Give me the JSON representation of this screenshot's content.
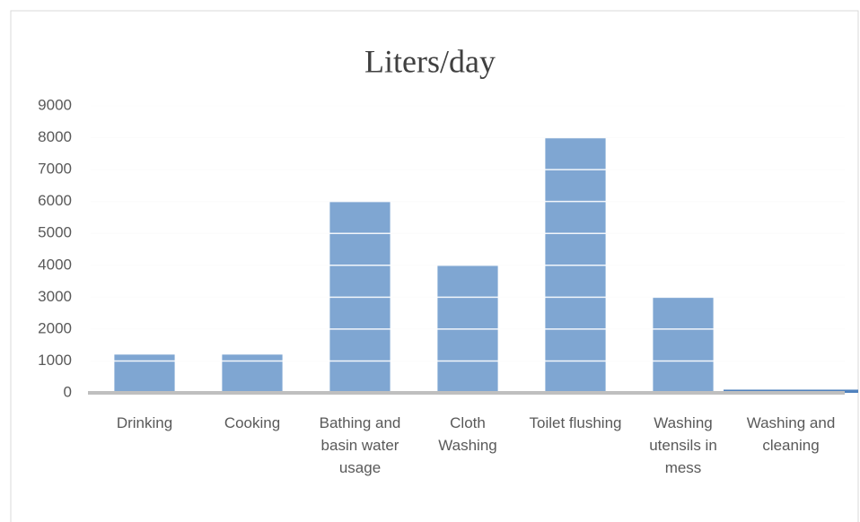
{
  "chart_data": {
    "type": "bar",
    "title": "Liters/day",
    "categories": [
      "Drinking",
      "Cooking",
      "Bathing and basin water usage",
      "Cloth Washing",
      "Toilet flushing",
      "Washing utensils in mess",
      "Washing and cleaning"
    ],
    "values": [
      1200,
      1200,
      6000,
      4000,
      8000,
      3000,
      100
    ],
    "colors": [
      "#7fa6d2",
      "#7fa6d2",
      "#7fa6d2",
      "#7fa6d2",
      "#7fa6d2",
      "#7fa6d2",
      "#4f81bd"
    ],
    "ylim": [
      0,
      9000
    ],
    "yticks": [
      0,
      1000,
      2000,
      3000,
      4000,
      5000,
      6000,
      7000,
      8000,
      9000
    ],
    "grid": true
  }
}
